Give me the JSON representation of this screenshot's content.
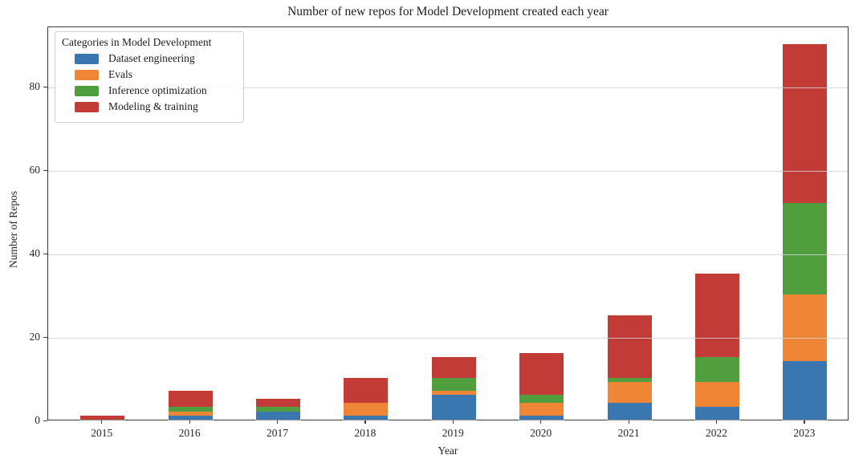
{
  "chart_data": {
    "type": "bar",
    "stacked": true,
    "title": "Number of new repos for Model Development created each year",
    "xlabel": "Year",
    "ylabel": "Number of Repos",
    "legend_title": "Categories in Model Development",
    "legend_position": "upper left",
    "grid": "horizontal",
    "categories": [
      "2015",
      "2016",
      "2017",
      "2018",
      "2019",
      "2020",
      "2021",
      "2022",
      "2023"
    ],
    "series": [
      {
        "name": "Dataset engineering",
        "color": "#3A76AF",
        "values": [
          0,
          1,
          2,
          1,
          6,
          1,
          4,
          3,
          14
        ]
      },
      {
        "name": "Evals",
        "color": "#EF8636",
        "values": [
          0,
          1,
          0,
          3,
          1,
          3,
          5,
          6,
          16
        ]
      },
      {
        "name": "Inference optimization",
        "color": "#519E3E",
        "values": [
          0,
          1,
          1,
          0,
          3,
          2,
          1,
          6,
          22
        ]
      },
      {
        "name": "Modeling & training",
        "color": "#C33B36",
        "values": [
          1,
          4,
          2,
          6,
          5,
          10,
          15,
          20,
          38
        ]
      }
    ],
    "totals": [
      1,
      7,
      5,
      10,
      15,
      16,
      25,
      35,
      90
    ],
    "ylim": [
      0,
      94.5
    ],
    "yticks": [
      0,
      20,
      40,
      60,
      80
    ]
  }
}
